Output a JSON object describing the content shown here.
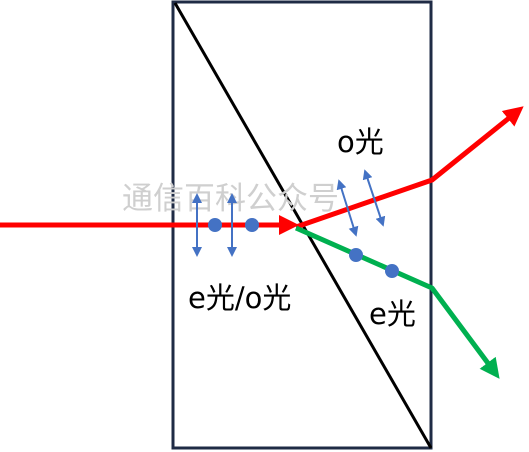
{
  "diagram": {
    "labels": {
      "o_ray": "o光",
      "e_ray": "e光",
      "incident": "e光/o光"
    },
    "watermark": "通信百科公众号",
    "colors": {
      "prism_border": "#1f2b45",
      "diagonal": "#000000",
      "o_ray": "#ff0000",
      "e_ray": "#00b050",
      "polarization": "#4472c4",
      "watermark": "#cfcfcf"
    }
  }
}
